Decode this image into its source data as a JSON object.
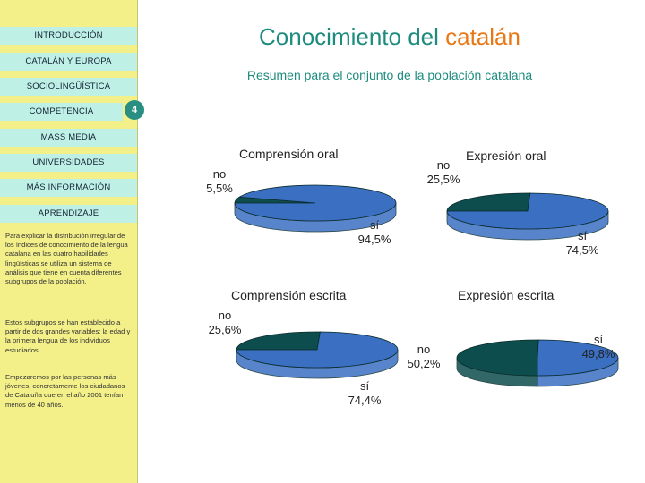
{
  "nav": {
    "items": [
      {
        "label": "INTRODUCCIÓN"
      },
      {
        "label": "CATALÁN Y EUROPA"
      },
      {
        "label": "SOCIOLINGÜÍSTICA"
      },
      {
        "label": "COMPETENCIA"
      },
      {
        "label": "MASS MEDIA"
      },
      {
        "label": "UNIVERSIDADES"
      },
      {
        "label": "MÁS INFORMACIÓN"
      },
      {
        "label": "APRENDIZAJE"
      }
    ],
    "active_badge": "4"
  },
  "sidebar": {
    "paragraphs": [
      "Para explicar la distribución irregular de los índices de conocimiento de la lengua catalana en las cuatro habilidades lingüísticas se utiliza un sistema de análisis que tiene en cuenta diferentes subgrupos de la población.",
      "Estos subgrupos se han establecido a partir de dos grandes variables: la edad y la primera lengua de los individuos estudiados.",
      "Empezaremos por las personas más jóvenes, concretamente los ciudadanos de Cataluña que en el año 2001 tenían menos de 40 años."
    ]
  },
  "header": {
    "title_main": "Conocimiento del ",
    "title_accent": "catalán",
    "subtitle": "Resumen para el conjunto de la población catalana"
  },
  "colors": {
    "sidebar_bg": "#f3f08a",
    "nav_bg": "#bff0e6",
    "accent": "#1d8c7e",
    "title_accent": "#e87816",
    "pie_yes": "#3a6fc2",
    "pie_no": "#0e4d4d"
  },
  "chart_data": [
    {
      "type": "pie",
      "title": "Comprensión oral",
      "labels": [
        "sí",
        "no"
      ],
      "values": [
        94.5,
        5.5
      ],
      "value_labels": [
        "94,5%",
        "5,5%"
      ]
    },
    {
      "type": "pie",
      "title": "Expresión oral",
      "labels": [
        "sí",
        "no"
      ],
      "values": [
        74.5,
        25.5
      ],
      "value_labels": [
        "74,5%",
        "25,5%"
      ]
    },
    {
      "type": "pie",
      "title": "Comprensión escrita",
      "labels": [
        "sí",
        "no"
      ],
      "values": [
        74.4,
        25.6
      ],
      "value_labels": [
        "74,4%",
        "25,6%"
      ]
    },
    {
      "type": "pie",
      "title": "Expresión escrita",
      "labels": [
        "sí",
        "no"
      ],
      "values": [
        49.8,
        50.2
      ],
      "value_labels": [
        "49,8%",
        "50,2%"
      ]
    }
  ]
}
